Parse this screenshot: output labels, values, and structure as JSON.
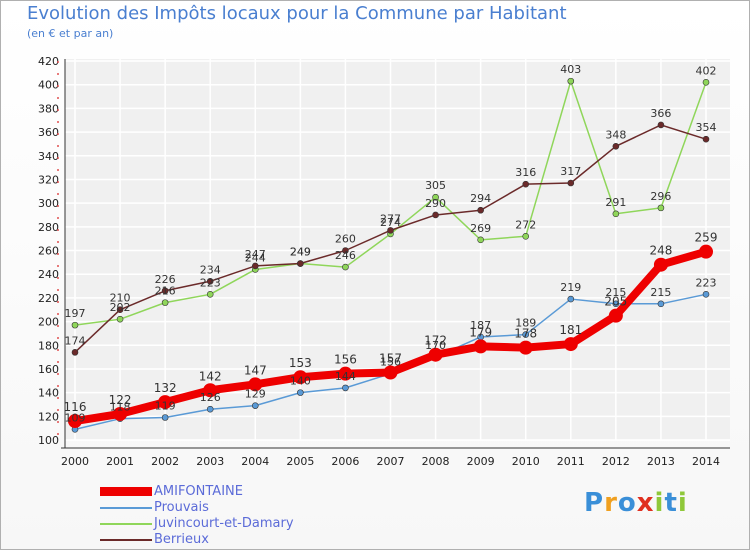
{
  "chart_data": {
    "type": "line",
    "title": "Evolution des Impôts locaux pour la Commune par Habitant",
    "subtitle": "(en € et par an)",
    "x": [
      "2000",
      "2001",
      "2002",
      "2003",
      "2004",
      "2005",
      "2006",
      "2007",
      "2008",
      "2009",
      "2010",
      "2011",
      "2012",
      "2013",
      "2014"
    ],
    "ylim": [
      100,
      420
    ],
    "yticks": [
      100,
      120,
      140,
      160,
      180,
      200,
      220,
      240,
      260,
      280,
      300,
      320,
      340,
      360,
      380,
      400,
      420
    ],
    "grid": true,
    "legend_position": "bottom-left",
    "series": [
      {
        "name": "AMIFONTAINE",
        "color": "#ee0000",
        "values": [
          116,
          122,
          132,
          142,
          147,
          153,
          156,
          157,
          172,
          179,
          178,
          181,
          205,
          248,
          259
        ],
        "labels": [
          "116",
          "122",
          "132",
          "142",
          "147",
          "153",
          "156",
          "157",
          "172",
          "179",
          "178",
          "181",
          "205",
          "248",
          "259"
        ]
      },
      {
        "name": "Prouvais",
        "color": "#5a9ad6",
        "values": [
          109,
          118,
          119,
          126,
          129,
          140,
          144,
          156,
          170,
          187,
          189,
          219,
          215,
          215,
          223
        ],
        "labels": [
          "109",
          "118",
          "119",
          "126",
          "129",
          "140",
          "144",
          "156",
          "170",
          "187",
          "189",
          "219",
          "215",
          "215",
          "223"
        ]
      },
      {
        "name": "Juvincourt-et-Damary",
        "color": "#8fd65a",
        "values": [
          197,
          202,
          216,
          223,
          244,
          249,
          246,
          274,
          305,
          269,
          272,
          403,
          291,
          296,
          402
        ],
        "labels": [
          "197",
          "202",
          "216",
          "223",
          "244",
          "249",
          "246",
          "274",
          "305",
          "269",
          "272",
          "403",
          "291",
          "296",
          "402"
        ]
      },
      {
        "name": "Berrieux",
        "color": "#6b2a2a",
        "values": [
          174,
          210,
          226,
          234,
          247,
          249,
          260,
          277,
          290,
          294,
          316,
          317,
          348,
          366,
          354
        ],
        "labels": [
          "174",
          "210",
          "226",
          "234",
          "247",
          "249",
          "260",
          "277",
          "290",
          "294",
          "316",
          "317",
          "348",
          "366",
          "354"
        ]
      }
    ]
  },
  "logo": {
    "text": "Proxiti"
  }
}
